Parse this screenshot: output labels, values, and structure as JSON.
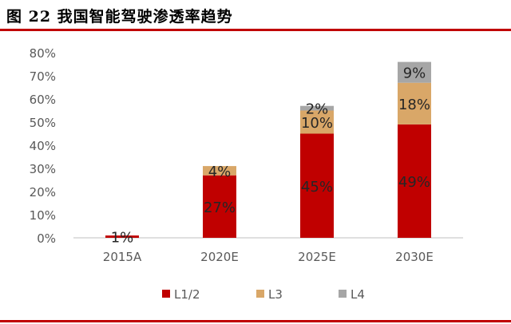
{
  "figure": {
    "title": "图 22 我国智能驾驶渗透率趋势",
    "accent_color": "#c00000"
  },
  "chart_data": {
    "type": "bar",
    "stacked": true,
    "title": "我国智能驾驶渗透率趋势",
    "categories": [
      "2015A",
      "2020E",
      "2025E",
      "2030E"
    ],
    "series": [
      {
        "name": "L1/2",
        "color": "#c00000",
        "values": [
          1,
          27,
          45,
          49
        ],
        "labels": [
          "1%",
          "27%",
          "45%",
          "49%"
        ]
      },
      {
        "name": "L3",
        "color": "#d9a768",
        "values": [
          0,
          4,
          10,
          18
        ],
        "labels": [
          "",
          "4%",
          "10%",
          "18%"
        ]
      },
      {
        "name": "L4",
        "color": "#a6a6a6",
        "values": [
          0,
          0,
          2,
          9
        ],
        "labels": [
          "",
          "",
          "2%",
          "9%"
        ]
      }
    ],
    "ylim": [
      0,
      80
    ],
    "yticks": [
      0,
      10,
      20,
      30,
      40,
      50,
      60,
      70,
      80
    ],
    "ytick_labels": [
      "0%",
      "10%",
      "20%",
      "30%",
      "40%",
      "50%",
      "60%",
      "70%",
      "80%"
    ],
    "xlabel": "",
    "ylabel": "",
    "grid": false,
    "legend_position": "bottom"
  }
}
